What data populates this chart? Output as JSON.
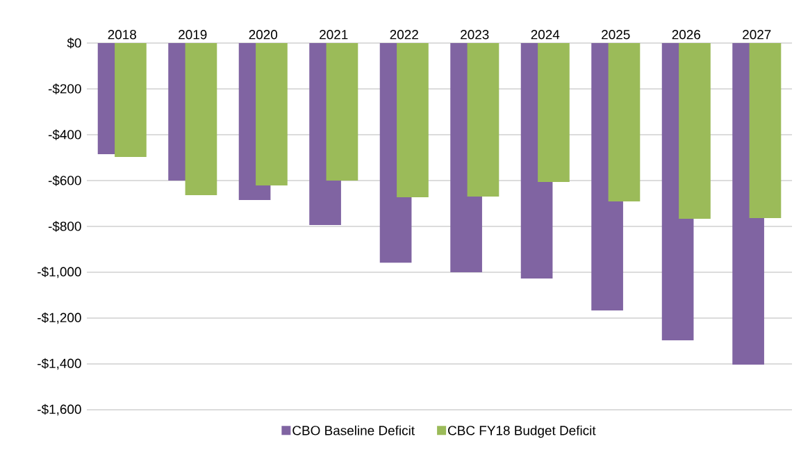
{
  "chart_data": {
    "type": "bar",
    "categories": [
      "2018",
      "2019",
      "2020",
      "2021",
      "2022",
      "2023",
      "2024",
      "2025",
      "2026",
      "2027"
    ],
    "series": [
      {
        "name": "CBO Baseline Deficit",
        "color": "#8064a2",
        "values": [
          -485,
          -600,
          -685,
          -794,
          -958,
          -1000,
          -1027,
          -1167,
          -1297,
          -1403
        ]
      },
      {
        "name": "CBC FY18 Budget Deficit",
        "color": "#9bbb59",
        "values": [
          -497,
          -664,
          -621,
          -600,
          -673,
          -670,
          -606,
          -691,
          -767,
          -764
        ]
      }
    ],
    "ylim": [
      -1600,
      0
    ],
    "yticks": [
      {
        "value": 0,
        "label": "$0"
      },
      {
        "value": -200,
        "label": "-$200"
      },
      {
        "value": -400,
        "label": "-$400"
      },
      {
        "value": -600,
        "label": "-$600"
      },
      {
        "value": -800,
        "label": "-$800"
      },
      {
        "value": -1000,
        "label": "-$1,000"
      },
      {
        "value": -1200,
        "label": "-$1,200"
      },
      {
        "value": -1400,
        "label": "-$1,400"
      },
      {
        "value": -1600,
        "label": "-$1,600"
      }
    ],
    "grid": "y",
    "legend": "bottom"
  }
}
